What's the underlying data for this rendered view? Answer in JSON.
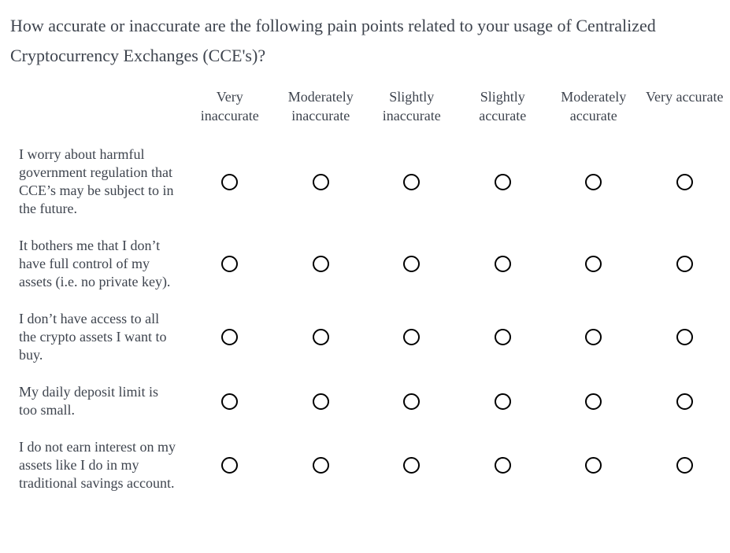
{
  "question": {
    "title": "How accurate or inaccurate are the following pain points related to your usage of Centralized Cryptocurrency Exchanges (CCE's)?"
  },
  "matrix": {
    "columns": [
      "Very inaccurate",
      "Moderately inaccurate",
      "Slightly inaccurate",
      "Slightly accurate",
      "Moderately accurate",
      "Very accurate"
    ],
    "rows": [
      {
        "label": "I worry about harmful government regulation that CCE’s may be subject to in the future.",
        "selected": null
      },
      {
        "label": "It bothers me that I don’t have full control of my assets (i.e. no private key).",
        "selected": null
      },
      {
        "label": "I don’t have access to all the crypto assets I want to buy.",
        "selected": null
      },
      {
        "label": "My daily deposit limit is too small.",
        "selected": null
      },
      {
        "label": "I do not earn interest on my assets like I do in my traditional savings account.",
        "selected": null
      }
    ]
  },
  "colors": {
    "text": "#3e444e",
    "radio_border": "#000000",
    "background": "#ffffff"
  }
}
